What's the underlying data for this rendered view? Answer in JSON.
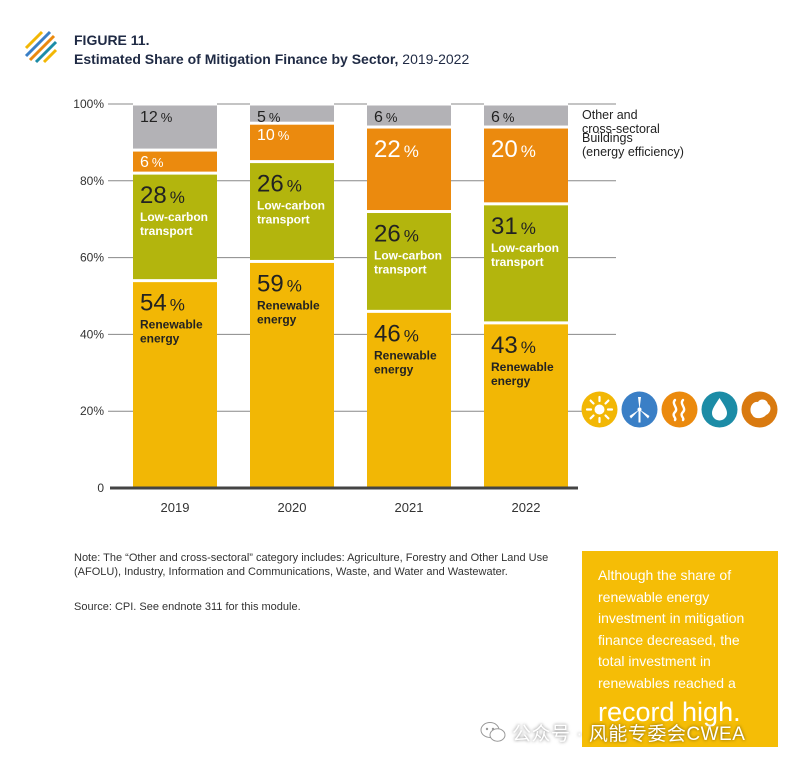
{
  "figure": {
    "label": "FIGURE 11.",
    "title_bold": "Estimated Share of Mitigation Finance by Sector,",
    "title_years": "2019-2022"
  },
  "chart_data": {
    "type": "bar",
    "stacked": true,
    "categories": [
      "2019",
      "2020",
      "2021",
      "2022"
    ],
    "series": [
      {
        "name": "Renewable energy",
        "values": [
          54,
          59,
          46,
          43
        ],
        "color": "#f2b705"
      },
      {
        "name": "Low-carbon transport",
        "values": [
          28,
          26,
          26,
          31
        ],
        "color": "#b3b50d"
      },
      {
        "name": "Buildings (energy efficiency)",
        "values": [
          6,
          10,
          22,
          20
        ],
        "color": "#eb8a0e"
      },
      {
        "name": "Other and cross-sectoral",
        "values": [
          12,
          5,
          6,
          6
        ],
        "color": "#b3b2b6"
      }
    ],
    "segment_labels": {
      "Renewable energy": [
        "Renewable",
        "energy"
      ],
      "Low-carbon transport": [
        "Low-carbon",
        "transport"
      ]
    },
    "legend_labels": {
      "Other and cross-sectoral": [
        "Other and",
        "cross-sectoral"
      ],
      "Buildings (energy efficiency)": [
        "Buildings",
        "(energy efficiency)"
      ]
    },
    "legend_placement": "right",
    "percent_sign": "%",
    "y_ticks": [
      "0",
      "20%",
      "40%",
      "60%",
      "80%",
      "100%"
    ],
    "ylim": [
      0,
      100
    ],
    "grid": true,
    "xlabel": "",
    "ylabel": ""
  },
  "icons": [
    {
      "name": "sun-icon",
      "color": "#f2b705"
    },
    {
      "name": "wind-turbine-icon",
      "color": "#3a7fc6"
    },
    {
      "name": "geothermal-heat-icon",
      "color": "#eb8a0e"
    },
    {
      "name": "water-drop-icon",
      "color": "#1c8ca6"
    },
    {
      "name": "biomass-leaf-icon",
      "color": "#d97a10"
    }
  ],
  "note": "Note: The “Other and cross-sectoral” category includes: Agriculture, Forestry and Other Land Use (AFOLU), Industry, Information and Communications, Waste, and Water and Wastewater.",
  "source": "Source: CPI. See endnote 311 for this module.",
  "callout": {
    "text": "Although the share of renewable energy investment in mitigation finance decreased, the total investment in renewables reached a",
    "emphasis": "record high."
  },
  "watermark": {
    "text": "公众号 · 风能专委会CWEA"
  }
}
